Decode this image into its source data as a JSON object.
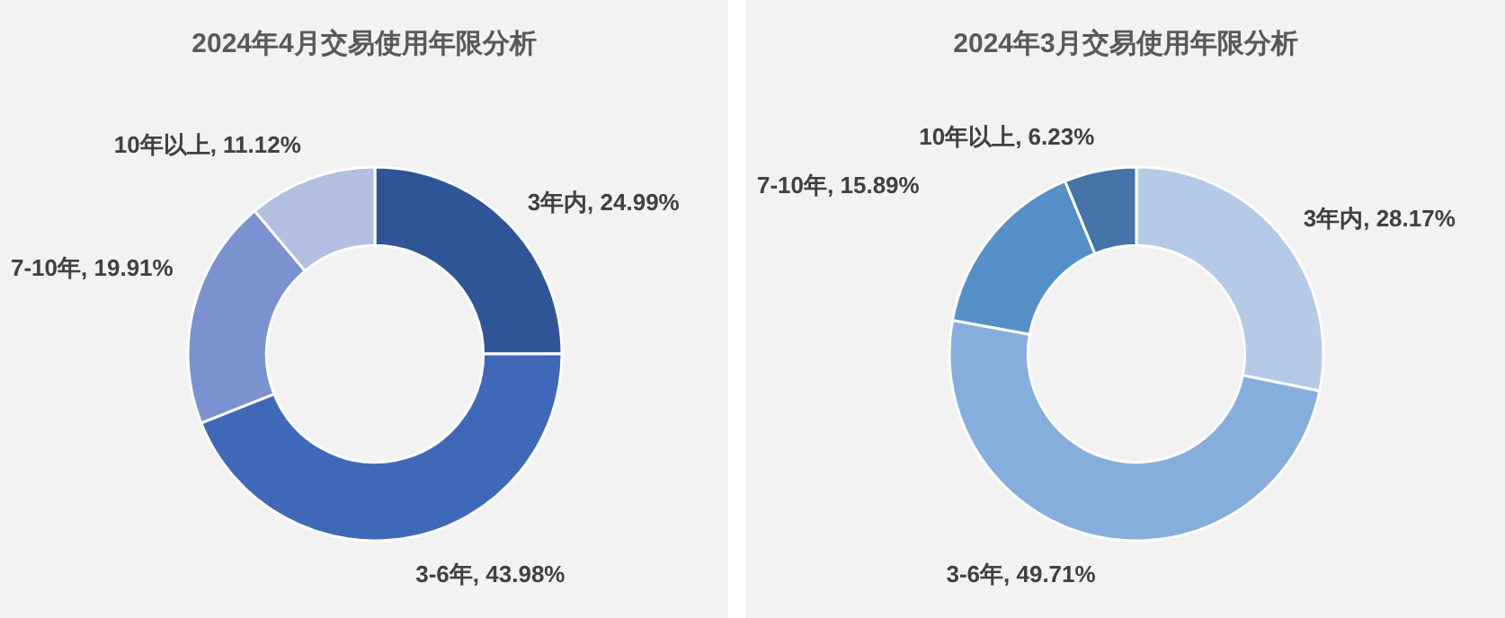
{
  "chart_data": [
    {
      "type": "donut",
      "title": "2024年4月交易使用年限分析",
      "categories": [
        "3年内",
        "3-6年",
        "7-10年",
        "10年以上"
      ],
      "values": [
        24.99,
        43.98,
        19.91,
        11.12
      ],
      "value_labels": [
        "24.99%",
        "43.98%",
        "19.91%",
        "11.12%"
      ],
      "colors": [
        "#2f5597",
        "#3f68b8",
        "#7b92d0",
        "#b3bfe0"
      ]
    },
    {
      "type": "donut",
      "title": "2024年3月交易使用年限分析",
      "categories": [
        "3年内",
        "3-6年",
        "7-10年",
        "10年以上"
      ],
      "values": [
        28.17,
        49.71,
        15.89,
        6.23
      ],
      "value_labels": [
        "28.17%",
        "49.71%",
        "15.89%",
        "6.23%"
      ],
      "colors": [
        "#b4cbe8",
        "#86aedc",
        "#5590c8",
        "#4474a8"
      ]
    }
  ]
}
